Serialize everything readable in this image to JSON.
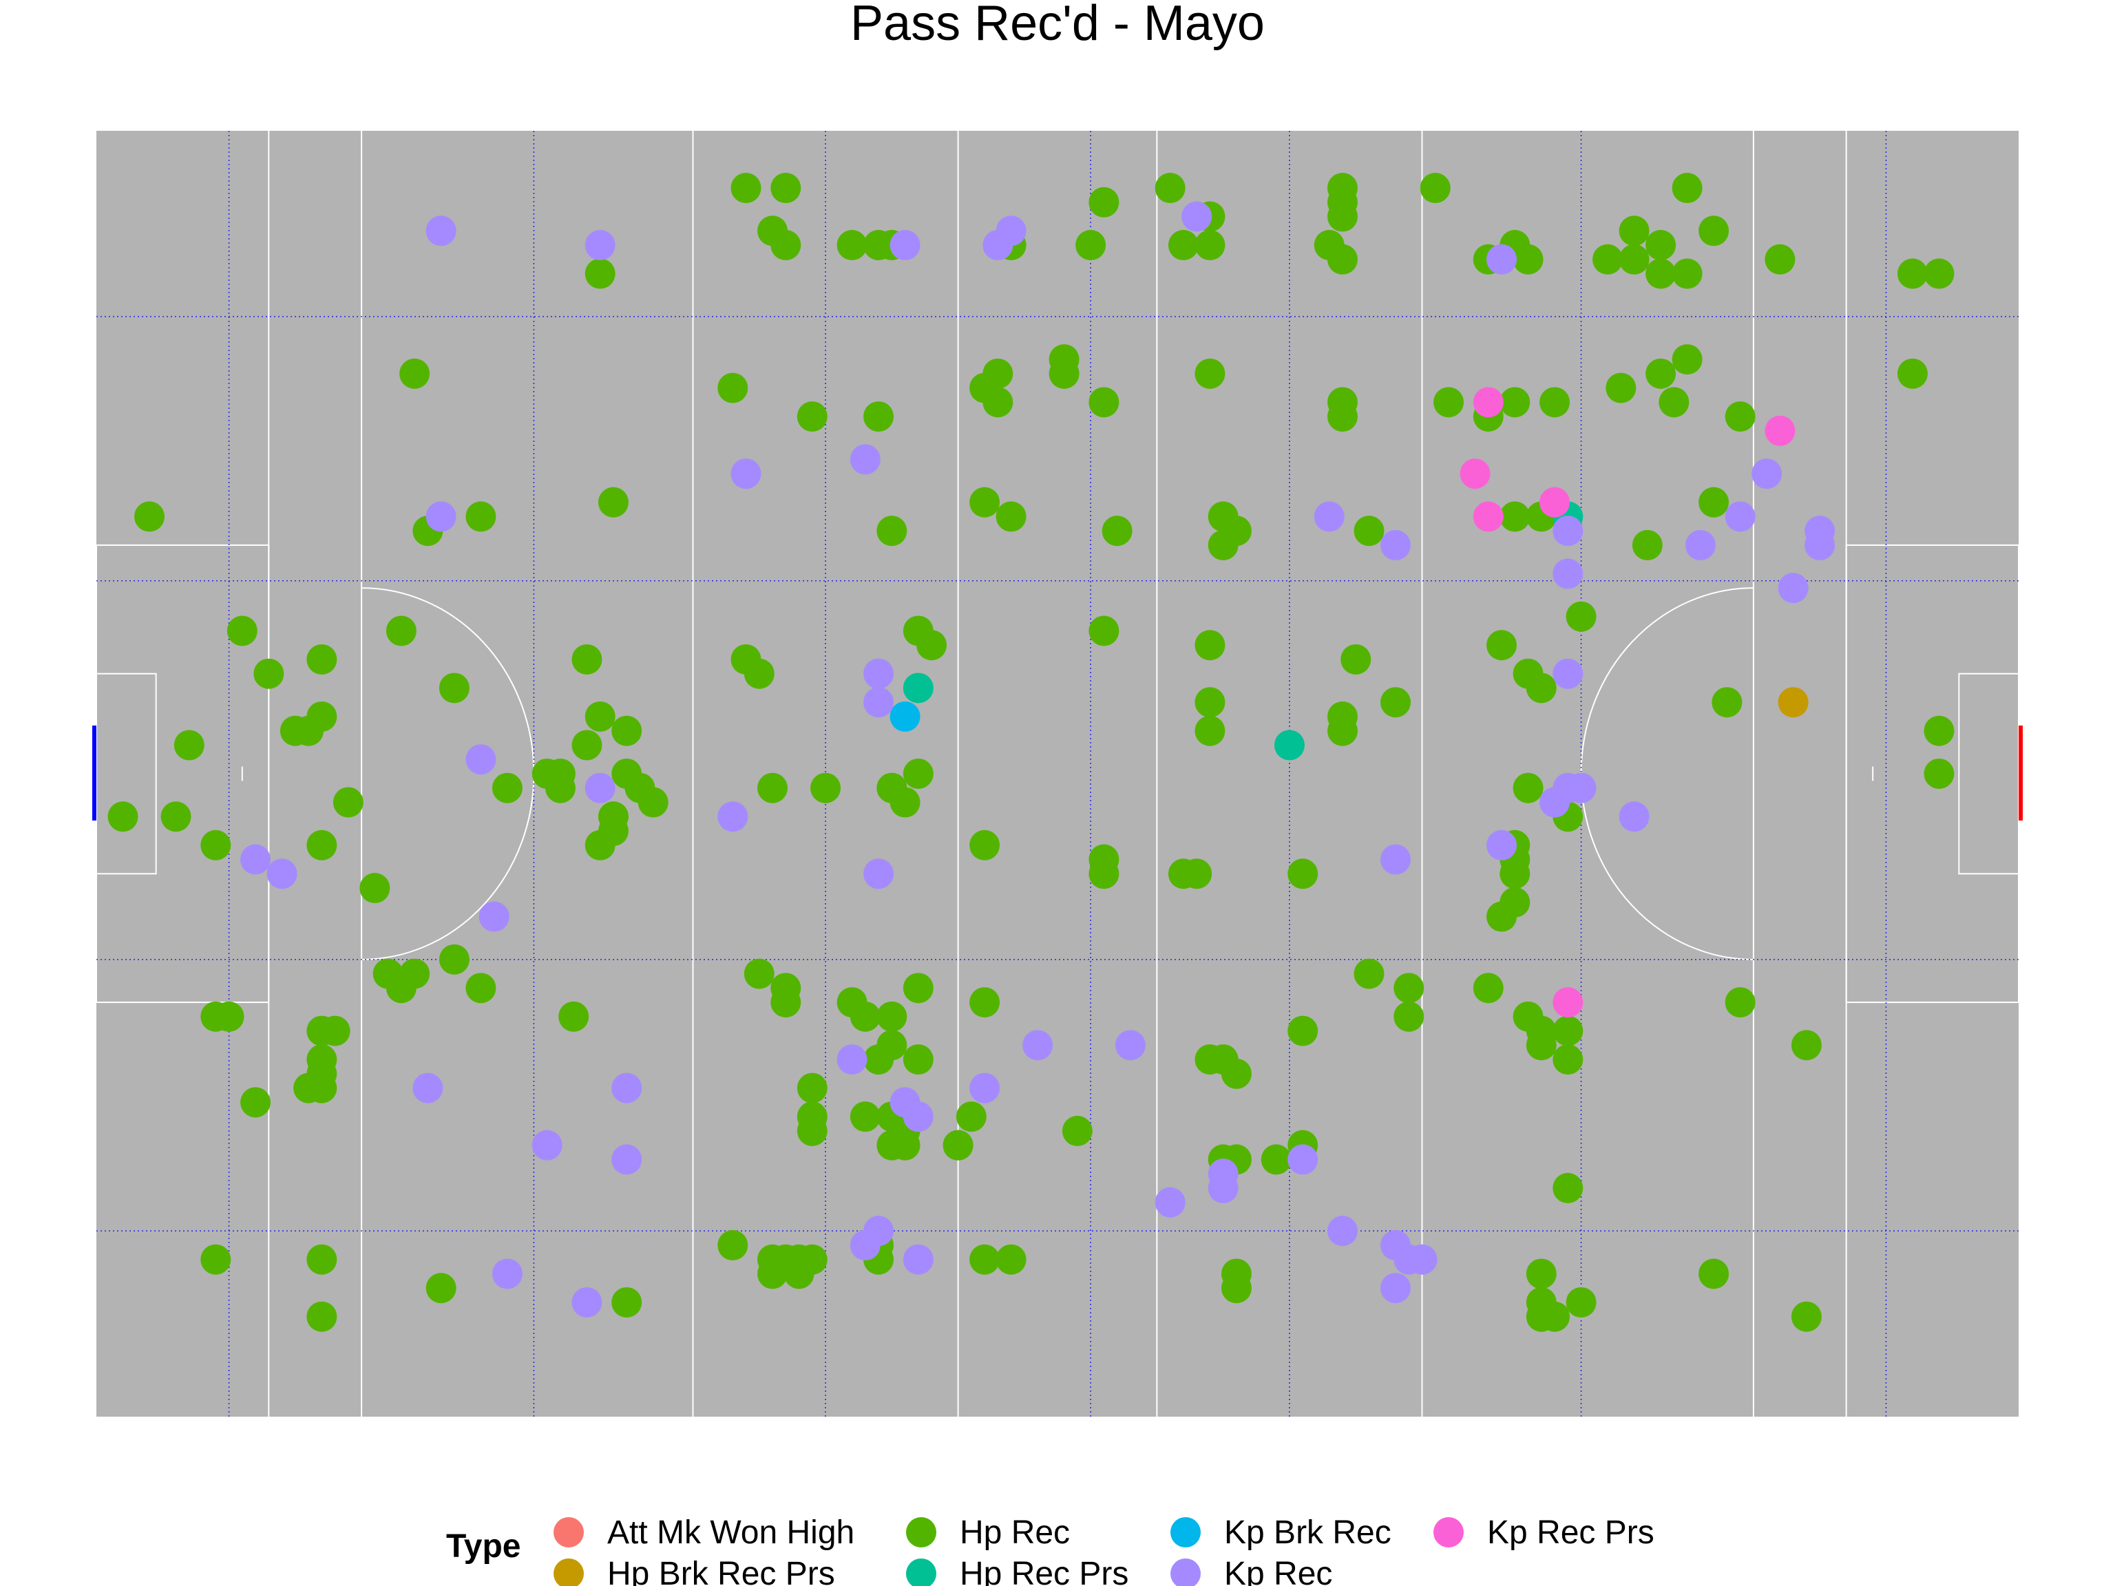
{
  "chart_data": {
    "type": "scatter",
    "title": "Pass Rec'd - Mayo",
    "xlabel": "",
    "ylabel": "",
    "xlim": [
      0,
      145
    ],
    "ylim": [
      0,
      90
    ],
    "grid": false,
    "legend_position": "bottom",
    "legend_title": "Type",
    "colors": {
      "Att Mk Won High": "#F8766D",
      "Hp Brk Rec Prs": "#C49A00",
      "Hp Rec": "#53B400",
      "Hp Rec Prs": "#00C094",
      "Kp Brk Rec": "#00B6EB",
      "Kp Rec": "#A58AFF",
      "Kp Rec Prs": "#FB61D7"
    },
    "series": [
      {
        "name": "Att Mk Won High",
        "points": [
          [
            107,
            63
          ]
        ]
      },
      {
        "name": "Hp Brk Rec Prs",
        "points": [
          [
            128,
            50
          ]
        ]
      },
      {
        "name": "Hp Rec",
        "points": [
          [
            49,
            86
          ],
          [
            52,
            86
          ],
          [
            51,
            83
          ],
          [
            52,
            82
          ],
          [
            57,
            82
          ],
          [
            59,
            82
          ],
          [
            60,
            82
          ],
          [
            75,
            82
          ],
          [
            76,
            85
          ],
          [
            81,
            86
          ],
          [
            84,
            84
          ],
          [
            82,
            82
          ],
          [
            84,
            82
          ],
          [
            94,
            86
          ],
          [
            94,
            85
          ],
          [
            94,
            84
          ],
          [
            93,
            82
          ],
          [
            94,
            81
          ],
          [
            101,
            86
          ],
          [
            105,
            81
          ],
          [
            107,
            82
          ],
          [
            108,
            81
          ],
          [
            114,
            81
          ],
          [
            116,
            81
          ],
          [
            116,
            83
          ],
          [
            118,
            82
          ],
          [
            120,
            86
          ],
          [
            122,
            83
          ],
          [
            118,
            80
          ],
          [
            120,
            80
          ],
          [
            127,
            81
          ],
          [
            137,
            80
          ],
          [
            139,
            80
          ],
          [
            69,
            82
          ],
          [
            38,
            80
          ],
          [
            24,
            73
          ],
          [
            48,
            72
          ],
          [
            54,
            70
          ],
          [
            59,
            70
          ],
          [
            68,
            73
          ],
          [
            67,
            72
          ],
          [
            68,
            71
          ],
          [
            73,
            74
          ],
          [
            73,
            73
          ],
          [
            76,
            71
          ],
          [
            84,
            73
          ],
          [
            94,
            71
          ],
          [
            94,
            70
          ],
          [
            102,
            71
          ],
          [
            105,
            70
          ],
          [
            107,
            71
          ],
          [
            110,
            71
          ],
          [
            115,
            72
          ],
          [
            118,
            73
          ],
          [
            119,
            71
          ],
          [
            120,
            74
          ],
          [
            124,
            70
          ],
          [
            137,
            73
          ],
          [
            4,
            63
          ],
          [
            25,
            62
          ],
          [
            29,
            63
          ],
          [
            39,
            64
          ],
          [
            60,
            62
          ],
          [
            69,
            63
          ],
          [
            67,
            64
          ],
          [
            77,
            62
          ],
          [
            85,
            63
          ],
          [
            85,
            61
          ],
          [
            86,
            62
          ],
          [
            96,
            62
          ],
          [
            107,
            63
          ],
          [
            109,
            63
          ],
          [
            117,
            61
          ],
          [
            122,
            64
          ],
          [
            11,
            55
          ],
          [
            13,
            52
          ],
          [
            17,
            53
          ],
          [
            23,
            55
          ],
          [
            37,
            53
          ],
          [
            49,
            53
          ],
          [
            50,
            52
          ],
          [
            62,
            55
          ],
          [
            63,
            54
          ],
          [
            76,
            55
          ],
          [
            84,
            54
          ],
          [
            95,
            53
          ],
          [
            106,
            54
          ],
          [
            108,
            52
          ],
          [
            109,
            51
          ],
          [
            112,
            56
          ],
          [
            7,
            47
          ],
          [
            15,
            48
          ],
          [
            16,
            48
          ],
          [
            17,
            49
          ],
          [
            27,
            51
          ],
          [
            38,
            49
          ],
          [
            40,
            48
          ],
          [
            84,
            48
          ],
          [
            94,
            49
          ],
          [
            84,
            50
          ],
          [
            94,
            48
          ],
          [
            98,
            50
          ],
          [
            123,
            50
          ],
          [
            139,
            48
          ],
          [
            139,
            45
          ],
          [
            19,
            43
          ],
          [
            35,
            45
          ],
          [
            37,
            47
          ],
          [
            42,
            43
          ],
          [
            51,
            44
          ],
          [
            55,
            44
          ],
          [
            60,
            44
          ],
          [
            62,
            45
          ],
          [
            40,
            45
          ],
          [
            41,
            44
          ],
          [
            39,
            42
          ],
          [
            39,
            41
          ],
          [
            35,
            44
          ],
          [
            34,
            45
          ],
          [
            31,
            44
          ],
          [
            2,
            42
          ],
          [
            6,
            42
          ],
          [
            9,
            40
          ],
          [
            17,
            40
          ],
          [
            21,
            37
          ],
          [
            39,
            42
          ],
          [
            38,
            40
          ],
          [
            60,
            44
          ],
          [
            61,
            43
          ],
          [
            67,
            40
          ],
          [
            76,
            38
          ],
          [
            76,
            39
          ],
          [
            82,
            38
          ],
          [
            83,
            38
          ],
          [
            91,
            38
          ],
          [
            111,
            42
          ],
          [
            107,
            40
          ],
          [
            107,
            39
          ],
          [
            107,
            38
          ],
          [
            107,
            36
          ],
          [
            106,
            35
          ],
          [
            108,
            44
          ],
          [
            22,
            31
          ],
          [
            23,
            30
          ],
          [
            27,
            32
          ],
          [
            36,
            28
          ],
          [
            24,
            31
          ],
          [
            29,
            30
          ],
          [
            10,
            28
          ],
          [
            9,
            28
          ],
          [
            18,
            27
          ],
          [
            17,
            25
          ],
          [
            17,
            24
          ],
          [
            17,
            23
          ],
          [
            16,
            23
          ],
          [
            12,
            22
          ],
          [
            17,
            27
          ],
          [
            50,
            31
          ],
          [
            52,
            30
          ],
          [
            52,
            29
          ],
          [
            57,
            29
          ],
          [
            58,
            28
          ],
          [
            60,
            28
          ],
          [
            60,
            26
          ],
          [
            59,
            25
          ],
          [
            62,
            30
          ],
          [
            62,
            25
          ],
          [
            67,
            29
          ],
          [
            84,
            25
          ],
          [
            85,
            25
          ],
          [
            86,
            24
          ],
          [
            91,
            27
          ],
          [
            96,
            31
          ],
          [
            99,
            30
          ],
          [
            99,
            28
          ],
          [
            105,
            30
          ],
          [
            108,
            28
          ],
          [
            109,
            27
          ],
          [
            109,
            26
          ],
          [
            111,
            27
          ],
          [
            111,
            25
          ],
          [
            124,
            29
          ],
          [
            129,
            26
          ],
          [
            54,
            23
          ],
          [
            54,
            21
          ],
          [
            54,
            20
          ],
          [
            58,
            21
          ],
          [
            60,
            21
          ],
          [
            60,
            19
          ],
          [
            61,
            20
          ],
          [
            61,
            19
          ],
          [
            65,
            19
          ],
          [
            66,
            21
          ],
          [
            74,
            20
          ],
          [
            85,
            18
          ],
          [
            86,
            18
          ],
          [
            89,
            18
          ],
          [
            91,
            19
          ],
          [
            111,
            16
          ],
          [
            48,
            12
          ],
          [
            51,
            11
          ],
          [
            51,
            10
          ],
          [
            52,
            11
          ],
          [
            53,
            11
          ],
          [
            54,
            11
          ],
          [
            53,
            10
          ],
          [
            59,
            12
          ],
          [
            59,
            11
          ],
          [
            67,
            11
          ],
          [
            69,
            11
          ],
          [
            86,
            10
          ],
          [
            86,
            9
          ],
          [
            109,
            10
          ],
          [
            109,
            8
          ],
          [
            109,
            7
          ],
          [
            110,
            7
          ],
          [
            112,
            8
          ],
          [
            122,
            10
          ],
          [
            129,
            7
          ],
          [
            9,
            11
          ],
          [
            17,
            11
          ],
          [
            17,
            7
          ],
          [
            26,
            9
          ],
          [
            40,
            8
          ],
          [
            65,
            19
          ]
        ]
      },
      {
        "name": "Hp Rec Prs",
        "points": [
          [
            111,
            63
          ],
          [
            62,
            51
          ],
          [
            90,
            47
          ]
        ]
      },
      {
        "name": "Kp Brk Rec",
        "points": [
          [
            61,
            49
          ]
        ]
      },
      {
        "name": "Kp Rec",
        "points": [
          [
            26,
            83
          ],
          [
            38,
            82
          ],
          [
            61,
            82
          ],
          [
            68,
            82
          ],
          [
            69,
            83
          ],
          [
            83,
            84
          ],
          [
            106,
            81
          ],
          [
            111,
            62
          ],
          [
            121,
            61
          ],
          [
            124,
            63
          ],
          [
            130,
            61
          ],
          [
            130,
            62
          ],
          [
            26,
            63
          ],
          [
            49,
            66
          ],
          [
            58,
            67
          ],
          [
            93,
            63
          ],
          [
            98,
            61
          ],
          [
            111,
            59
          ],
          [
            126,
            66
          ],
          [
            128,
            58
          ],
          [
            29,
            46
          ],
          [
            38,
            44
          ],
          [
            59,
            52
          ],
          [
            48,
            42
          ],
          [
            59,
            38
          ],
          [
            12,
            39
          ],
          [
            14,
            38
          ],
          [
            30,
            35
          ],
          [
            98,
            39
          ],
          [
            106,
            40
          ],
          [
            110,
            43
          ],
          [
            111,
            44
          ],
          [
            111,
            52
          ],
          [
            59,
            50
          ],
          [
            71,
            26
          ],
          [
            78,
            26
          ],
          [
            40,
            23
          ],
          [
            62,
            21
          ],
          [
            57,
            25
          ],
          [
            61,
            22
          ],
          [
            67,
            23
          ],
          [
            25,
            23
          ],
          [
            85,
            17
          ],
          [
            91,
            18
          ],
          [
            34,
            19
          ],
          [
            40,
            18
          ],
          [
            98,
            12
          ],
          [
            99,
            11
          ],
          [
            100,
            11
          ],
          [
            98,
            9
          ],
          [
            62,
            11
          ],
          [
            31,
            10
          ],
          [
            37,
            8
          ],
          [
            59,
            13
          ],
          [
            58,
            12
          ],
          [
            94,
            13
          ],
          [
            81,
            15
          ],
          [
            85,
            16
          ],
          [
            112,
            44
          ],
          [
            116,
            42
          ]
        ]
      },
      {
        "name": "Kp Rec Prs",
        "points": [
          [
            104,
            66
          ],
          [
            105,
            63
          ],
          [
            110,
            64
          ],
          [
            127,
            69
          ],
          [
            105,
            71
          ],
          [
            111,
            29
          ]
        ]
      }
    ]
  }
}
